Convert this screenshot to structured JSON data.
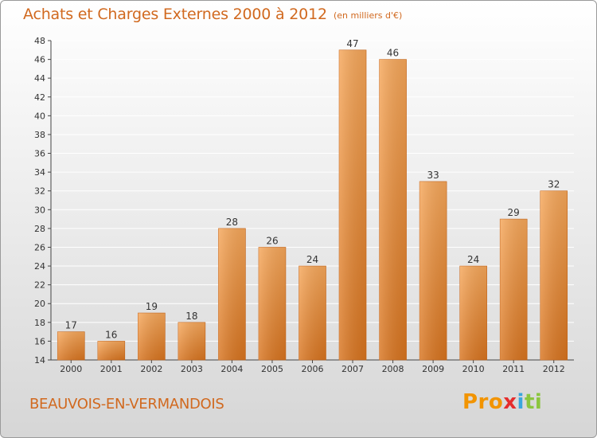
{
  "title": "Achats et Charges Externes 2000 à 2012",
  "subtitle": "(en milliers d'€)",
  "place": "BEAUVOIS-EN-VERMANDOIS",
  "logo": {
    "p1": "Pro",
    "p2": "x",
    "p3": "i",
    "p4": "ti",
    "text": "Proxiti"
  },
  "colors": {
    "accent": "#d1691f",
    "bar_top": "#f6a75a",
    "bar_bottom": "#d8741f",
    "axis": "#444444",
    "grid": "#ffffff"
  },
  "chart_data": {
    "type": "bar",
    "title": "Achats et Charges Externes 2000 à 2012",
    "subtitle": "(en milliers d'€)",
    "categories": [
      "2000",
      "2001",
      "2002",
      "2003",
      "2004",
      "2005",
      "2006",
      "2007",
      "2008",
      "2009",
      "2010",
      "2011",
      "2012"
    ],
    "values": [
      17,
      16,
      19,
      18,
      28,
      26,
      24,
      47,
      46,
      33,
      24,
      29,
      32
    ],
    "ylim": [
      14,
      48
    ],
    "yticks": [
      14,
      16,
      18,
      20,
      22,
      24,
      26,
      28,
      30,
      32,
      34,
      36,
      38,
      40,
      42,
      44,
      46,
      48
    ],
    "grid": true,
    "data_labels": true
  }
}
